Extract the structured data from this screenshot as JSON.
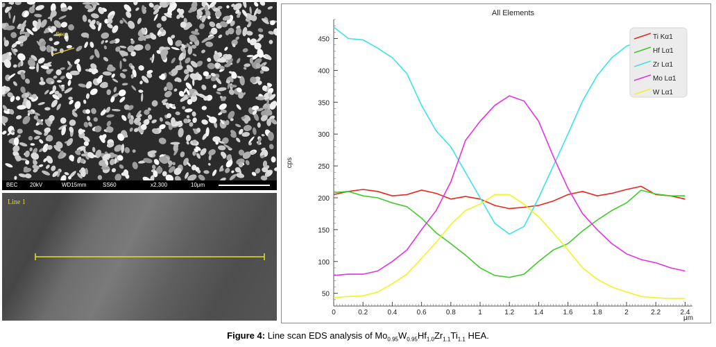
{
  "sem": {
    "bar": {
      "mode": "BEC",
      "voltage": "20kV",
      "wd": "WD15mm",
      "ss": "SS60",
      "mag": "x2,300",
      "scale": "10μm"
    }
  },
  "linescan": {
    "label": "Line 1"
  },
  "caption": {
    "prefix": "Figure 4:",
    "text": "Line scan EDS analysis of Mo",
    "s1": "0.95",
    "t1": "W",
    "s2": "0.95",
    "t2": "Hf",
    "s3": "1.0",
    "t3": "Zr",
    "s4": "1.1",
    "t4": "Ti",
    "s5": "1.1",
    "t5": " HEA."
  },
  "chart_data": {
    "type": "line",
    "title": "All Elements",
    "xlabel": "μm",
    "ylabel": "cps",
    "xlim": [
      0,
      2.45
    ],
    "ylim": [
      30,
      480
    ],
    "xticks": [
      0,
      0.2,
      0.4,
      0.6,
      0.8,
      1,
      1.2,
      1.4,
      1.6,
      1.8,
      2,
      2.2,
      2.4
    ],
    "xtick_labels": [
      "0",
      "0.2",
      "0.4",
      "0.6",
      "0.8",
      "1",
      "1.2",
      "1.4",
      "1.6",
      "1.8",
      "2",
      "2.2",
      "2.4"
    ],
    "yticks": [
      50,
      100,
      150,
      200,
      250,
      300,
      350,
      400,
      450
    ],
    "legend_position": "top-right",
    "x": [
      0,
      0.1,
      0.2,
      0.3,
      0.4,
      0.5,
      0.6,
      0.7,
      0.8,
      0.9,
      1.0,
      1.1,
      1.2,
      1.3,
      1.4,
      1.5,
      1.6,
      1.7,
      1.8,
      1.9,
      2.0,
      2.1,
      2.2,
      2.3,
      2.4
    ],
    "series": [
      {
        "name": "Ti Kα1",
        "color": "#e8261d",
        "values": [
          205,
          210,
          213,
          210,
          203,
          205,
          212,
          207,
          198,
          202,
          198,
          188,
          183,
          185,
          188,
          195,
          205,
          210,
          203,
          207,
          213,
          218,
          205,
          203,
          198
        ]
      },
      {
        "name": "Hf Lα1",
        "color": "#3ccc24",
        "values": [
          208,
          210,
          203,
          200,
          192,
          186,
          168,
          145,
          128,
          110,
          90,
          78,
          75,
          80,
          100,
          118,
          128,
          148,
          165,
          180,
          192,
          212,
          206,
          203,
          203
        ]
      },
      {
        "name": "Zr Lα1",
        "color": "#38e3ea",
        "values": [
          468,
          450,
          448,
          435,
          420,
          395,
          345,
          305,
          280,
          240,
          200,
          160,
          143,
          155,
          200,
          250,
          300,
          352,
          392,
          420,
          438,
          446,
          448,
          450,
          445
        ]
      },
      {
        "name": "Mo Lα1",
        "color": "#e431e4",
        "values": [
          78,
          80,
          80,
          85,
          100,
          118,
          150,
          180,
          225,
          290,
          320,
          345,
          360,
          352,
          320,
          265,
          215,
          175,
          150,
          128,
          112,
          103,
          98,
          90,
          85
        ]
      },
      {
        "name": "W Lα1",
        "color": "#f2f224",
        "values": [
          43,
          45,
          46,
          52,
          65,
          80,
          105,
          130,
          158,
          180,
          190,
          205,
          205,
          190,
          170,
          145,
          118,
          90,
          72,
          60,
          52,
          45,
          43,
          42,
          42
        ]
      }
    ]
  }
}
